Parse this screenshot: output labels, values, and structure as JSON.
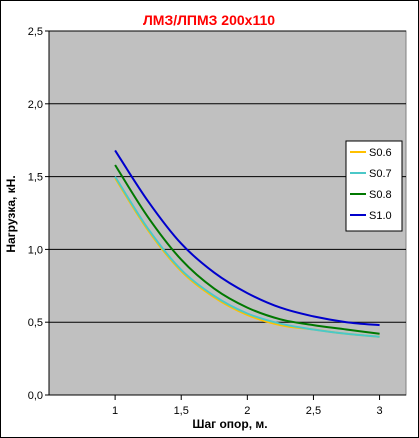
{
  "chart_data": {
    "type": "line",
    "title": "ЛМЗ/ЛПМЗ 200х110",
    "xlabel": "Шаг опор, м.",
    "ylabel": "Нагрузка, кН.",
    "xlim": [
      0.5,
      3.2
    ],
    "ylim": [
      0,
      2.5
    ],
    "x_ticks": [
      1,
      1.5,
      2,
      2.5,
      3
    ],
    "x_tick_labels": [
      "1",
      "1,5",
      "2",
      "2,5",
      "3"
    ],
    "y_ticks": [
      0,
      0.5,
      1,
      1.5,
      2,
      2.5
    ],
    "y_tick_labels": [
      "0,0",
      "0,5",
      "1,0",
      "1,5",
      "2,0",
      "2,5"
    ],
    "grid": "horizontal",
    "plot_bg": "#C0C0C0",
    "title_color": "#FF0000",
    "legend_position": "right",
    "series": [
      {
        "name": "S0.6",
        "color": "#FFC000",
        "x": [
          1.0,
          1.25,
          1.5,
          1.75,
          2.0,
          2.25,
          2.5,
          2.75,
          3.0
        ],
        "y": [
          1.49,
          1.13,
          0.85,
          0.67,
          0.55,
          0.48,
          0.45,
          0.42,
          0.4
        ]
      },
      {
        "name": "S0.7",
        "color": "#4BC8C8",
        "x": [
          1.0,
          1.25,
          1.5,
          1.75,
          2.0,
          2.25,
          2.5,
          2.75,
          3.0
        ],
        "y": [
          1.5,
          1.14,
          0.86,
          0.68,
          0.56,
          0.49,
          0.45,
          0.42,
          0.4
        ]
      },
      {
        "name": "S0.8",
        "color": "#007800",
        "x": [
          1.0,
          1.25,
          1.5,
          1.75,
          2.0,
          2.25,
          2.5,
          2.75,
          3.0
        ],
        "y": [
          1.58,
          1.22,
          0.93,
          0.73,
          0.6,
          0.52,
          0.48,
          0.45,
          0.42
        ]
      },
      {
        "name": "S1.0",
        "color": "#0000CC",
        "x": [
          1.0,
          1.25,
          1.5,
          1.75,
          2.0,
          2.25,
          2.5,
          2.75,
          3.0
        ],
        "y": [
          1.68,
          1.33,
          1.04,
          0.84,
          0.7,
          0.6,
          0.54,
          0.5,
          0.48
        ]
      }
    ]
  }
}
